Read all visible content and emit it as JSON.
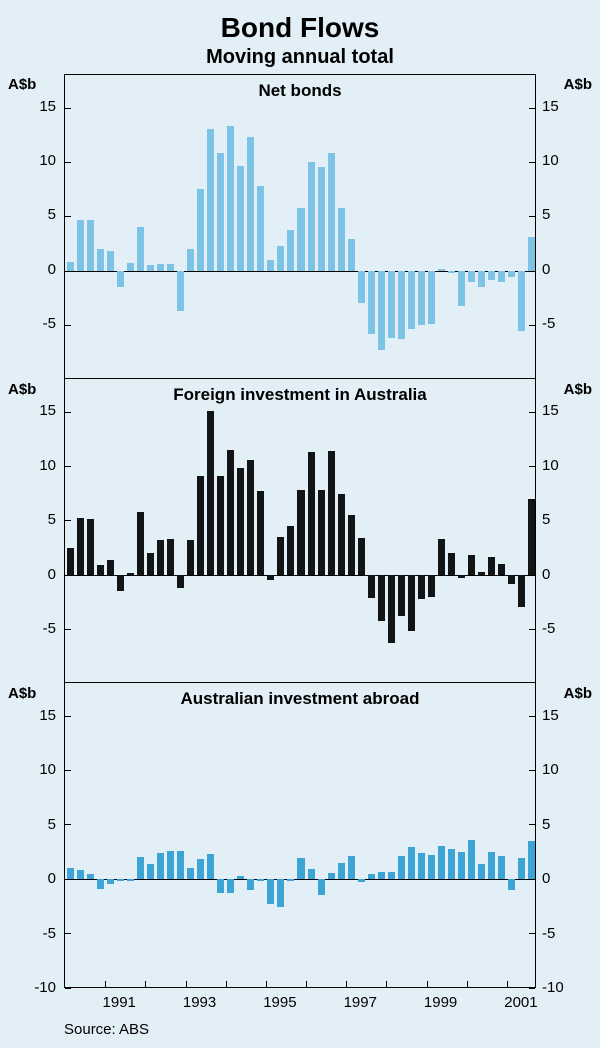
{
  "title": "Bond Flows",
  "subtitle": "Moving annual total",
  "source": "Source: ABS",
  "background_color": "#e3eff6",
  "border_color": "#000000",
  "axis_unit_label": "A$b",
  "font_family": "Arial",
  "title_fontsize": 28,
  "subtitle_fontsize": 20,
  "panel_title_fontsize": 17,
  "tick_fontsize": 15,
  "x_axis": {
    "labels": [
      1991,
      1993,
      1995,
      1997,
      1999,
      2001
    ],
    "tick_every": 4,
    "n_bars": 47
  },
  "y_axis": {
    "min": -10,
    "max": 18,
    "ticks": [
      -10,
      -5,
      0,
      5,
      10,
      15
    ]
  },
  "panels": [
    {
      "title": "Net bonds",
      "bar_color": "#7cc3e6",
      "y_top_tick_omitted": true,
      "values": [
        0.8,
        4.7,
        4.7,
        2.0,
        1.8,
        -1.5,
        0.7,
        4.0,
        0.5,
        0.6,
        0.6,
        -3.7,
        2.0,
        7.5,
        13.0,
        10.8,
        13.3,
        9.6,
        12.3,
        7.8,
        1.0,
        2.3,
        3.8,
        5.8,
        10.0,
        9.5,
        10.8,
        5.8,
        2.9,
        -3.0,
        -5.8,
        -7.3,
        -6.2,
        -6.3,
        -5.3,
        -5.0,
        -4.9,
        0.2,
        -0.2,
        -3.2,
        -1.0,
        -1.5,
        -0.8,
        -1.0,
        -0.6,
        -5.5,
        3.1
      ]
    },
    {
      "title": "Foreign investment in Australia",
      "bar_color": "#121416",
      "y_top_tick_omitted": true,
      "values": [
        2.5,
        5.2,
        5.1,
        0.9,
        1.4,
        -1.5,
        0.2,
        5.8,
        2.0,
        3.2,
        3.3,
        -1.2,
        3.2,
        9.1,
        15.1,
        9.1,
        11.5,
        9.8,
        10.6,
        7.7,
        -0.5,
        3.5,
        4.5,
        7.8,
        11.3,
        7.8,
        11.4,
        7.4,
        5.5,
        3.4,
        -2.1,
        -4.2,
        -6.3,
        -3.8,
        -5.2,
        -2.2,
        -2.0,
        3.3,
        2.0,
        -0.3,
        1.8,
        0.3,
        1.6,
        1.0,
        -0.8,
        -3.0,
        7.0
      ]
    },
    {
      "title": "Australian investment abroad",
      "bar_color": "#3da4d6",
      "y_top_tick_omitted": false,
      "values": [
        1.0,
        0.8,
        0.4,
        -0.9,
        -0.5,
        -0.2,
        -0.2,
        2.0,
        1.4,
        2.4,
        2.6,
        2.6,
        1.0,
        1.8,
        2.3,
        -1.3,
        -1.3,
        0.3,
        -1.0,
        -0.2,
        -2.3,
        -2.6,
        -0.2,
        1.9,
        0.9,
        -1.5,
        0.5,
        1.5,
        2.1,
        -0.3,
        0.4,
        0.6,
        0.6,
        2.1,
        2.9,
        2.4,
        2.2,
        3.0,
        2.7,
        2.5,
        3.6,
        1.4,
        2.5,
        2.1,
        -1.0,
        1.9,
        3.5
      ]
    }
  ]
}
